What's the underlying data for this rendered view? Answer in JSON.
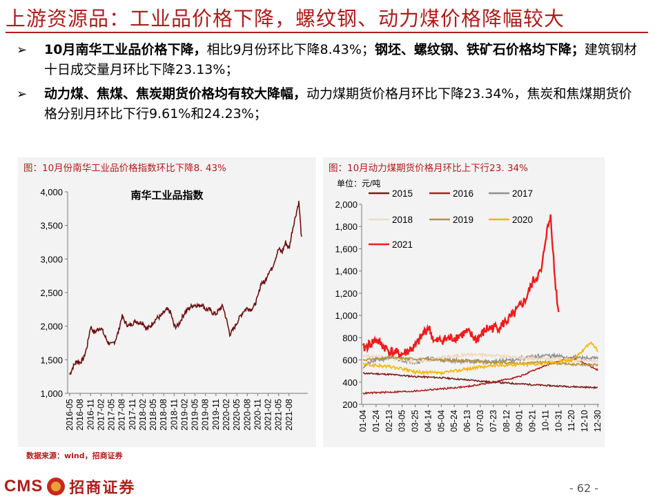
{
  "page": {
    "title": "上游资源品：工业品价格下降，螺纹钢、动力煤价格降幅较大",
    "bullets": [
      {
        "bold": "10月南华工业品价格下降，",
        "text": "相比9月份环比下降8.43%；",
        "bold2": "钢坯、螺纹钢、铁矿石价格均下降；",
        "text2": "建筑钢材十日成交量月环比下降23.13%；"
      },
      {
        "bold": "动力煤、焦煤、焦炭期货价格均有较大降幅，",
        "text": "动力煤期货价格月环比下降23.34%，焦炭和焦煤期货价格分别月环比下行9.61%和24.23%；",
        "bold2": "",
        "text2": ""
      }
    ],
    "source": "数据来源：wind，招商证券",
    "logo_text": "CMS",
    "logo_cn": "招商证券",
    "page_number": "- 62 -",
    "colors": {
      "accent": "#b01c1c",
      "panel_bg": "#f3f3f3"
    }
  },
  "chart_data": [
    {
      "type": "line",
      "caption": "图：10月份南华工业品价格指数环比下降8. 43%",
      "series": [
        {
          "name": "南华工业品指数",
          "color": "#6b0f0f",
          "anchors": [
            [
              "2016-05",
              1280
            ],
            [
              "2016-06",
              1400
            ],
            [
              "2016-07",
              1480
            ],
            [
              "2016-08",
              1460
            ],
            [
              "2016-09",
              1520
            ],
            [
              "2016-10",
              1700
            ],
            [
              "2016-11",
              2000
            ],
            [
              "2016-12",
              1900
            ],
            [
              "2017-01",
              1950
            ],
            [
              "2017-02",
              1980
            ],
            [
              "2017-03",
              1860
            ],
            [
              "2017-04",
              1760
            ],
            [
              "2017-05",
              1720
            ],
            [
              "2017-06",
              1780
            ],
            [
              "2017-07",
              1920
            ],
            [
              "2017-08",
              2150
            ],
            [
              "2017-09",
              2050
            ],
            [
              "2017-10",
              2000
            ],
            [
              "2017-11",
              2040
            ],
            [
              "2017-12",
              2080
            ],
            [
              "2018-01",
              2050
            ],
            [
              "2018-02",
              2060
            ],
            [
              "2018-03",
              1960
            ],
            [
              "2018-04",
              1990
            ],
            [
              "2018-05",
              2060
            ],
            [
              "2018-06",
              2120
            ],
            [
              "2018-07",
              2140
            ],
            [
              "2018-08",
              2200
            ],
            [
              "2018-09",
              2250
            ],
            [
              "2018-10",
              2200
            ],
            [
              "2018-11",
              2000
            ],
            [
              "2018-12",
              2000
            ],
            [
              "2019-01",
              2100
            ],
            [
              "2019-02",
              2200
            ],
            [
              "2019-03",
              2250
            ],
            [
              "2019-04",
              2300
            ],
            [
              "2019-05",
              2320
            ],
            [
              "2019-06",
              2300
            ],
            [
              "2019-07",
              2330
            ],
            [
              "2019-08",
              2250
            ],
            [
              "2019-09",
              2250
            ],
            [
              "2019-10",
              2200
            ],
            [
              "2019-11",
              2180
            ],
            [
              "2019-12",
              2250
            ],
            [
              "2020-01",
              2300
            ],
            [
              "2020-02",
              2100
            ],
            [
              "2020-03",
              1880
            ],
            [
              "2020-04",
              1950
            ],
            [
              "2020-05",
              2050
            ],
            [
              "2020-06",
              2150
            ],
            [
              "2020-07",
              2230
            ],
            [
              "2020-08",
              2270
            ],
            [
              "2020-09",
              2250
            ],
            [
              "2020-10",
              2300
            ],
            [
              "2020-11",
              2430
            ],
            [
              "2020-12",
              2650
            ],
            [
              "2021-01",
              2650
            ],
            [
              "2021-02",
              2800
            ],
            [
              "2021-03",
              2850
            ],
            [
              "2021-04",
              3000
            ],
            [
              "2021-05",
              3150
            ],
            [
              "2021-06",
              3100
            ],
            [
              "2021-07",
              3250
            ],
            [
              "2021-08",
              3150
            ],
            [
              "2021-09",
              3450
            ],
            [
              "2021-10",
              3850
            ],
            [
              "2021-10b",
              3300
            ]
          ]
        }
      ],
      "x_ticks": [
        "2016-05",
        "2016-08",
        "2016-11",
        "2017-02",
        "2017-05",
        "2017-08",
        "2017-11",
        "2018-02",
        "2018-05",
        "2018-08",
        "2018-11",
        "2019-02",
        "2019-05",
        "2019-08",
        "2019-11",
        "2020-02",
        "2020-05",
        "2020-08",
        "2020-11",
        "2021-02",
        "2021-05",
        "2021-08"
      ],
      "y_ticks": [
        "1,000",
        "1,500",
        "2,000",
        "2,500",
        "3,000",
        "3,500",
        "4,000"
      ],
      "ylim": [
        1000,
        4000
      ],
      "legend": "top-center"
    },
    {
      "type": "line",
      "caption": "图：10月动力煤期货价格月环比上下行23. 34%",
      "unit_label": "单位：元/吨",
      "x_ticks": [
        "01-04",
        "01-24",
        "02-13",
        "03-05",
        "03-25",
        "04-14",
        "05-04",
        "05-24",
        "06-13",
        "07-03",
        "07-23",
        "08-12",
        "09-01",
        "09-21",
        "10-11",
        "10-31",
        "11-20",
        "12-10",
        "12-30"
      ],
      "y_ticks": [
        "200",
        "400",
        "600",
        "800",
        "1,000",
        "1,200",
        "1,400",
        "1,600",
        "1,800",
        "2,000"
      ],
      "ylim": [
        200,
        2000
      ],
      "legend": "top-left",
      "series": [
        {
          "name": "2015",
          "color": "#7a1b1b",
          "anchors": [
            [
              0,
              480
            ],
            [
              2,
              470
            ],
            [
              4,
              450
            ],
            [
              6,
              440
            ],
            [
              8,
              420
            ],
            [
              10,
              400
            ],
            [
              12,
              385
            ],
            [
              14,
              370
            ],
            [
              16,
              360
            ],
            [
              18,
              350
            ]
          ]
        },
        {
          "name": "2016",
          "color": "#a82020",
          "anchors": [
            [
              0,
              300
            ],
            [
              2,
              310
            ],
            [
              4,
              320
            ],
            [
              6,
              340
            ],
            [
              8,
              360
            ],
            [
              10,
              400
            ],
            [
              12,
              450
            ],
            [
              14,
              550
            ],
            [
              16,
              620
            ],
            [
              17,
              570
            ],
            [
              18,
              510
            ]
          ]
        },
        {
          "name": "2017",
          "color": "#909090",
          "anchors": [
            [
              0,
              540
            ],
            [
              1,
              600
            ],
            [
              2,
              620
            ],
            [
              4,
              580
            ],
            [
              5,
              610
            ],
            [
              6,
              600
            ],
            [
              8,
              590
            ],
            [
              10,
              580
            ],
            [
              12,
              610
            ],
            [
              14,
              640
            ],
            [
              16,
              620
            ],
            [
              18,
              610
            ]
          ]
        },
        {
          "name": "2018",
          "color": "#f0d8c0",
          "anchors": [
            [
              0,
              640
            ],
            [
              2,
              620
            ],
            [
              4,
              580
            ],
            [
              6,
              620
            ],
            [
              8,
              650
            ],
            [
              10,
              640
            ],
            [
              12,
              620
            ],
            [
              14,
              610
            ],
            [
              16,
              600
            ],
            [
              18,
              590
            ]
          ]
        },
        {
          "name": "2019",
          "color": "#b8923e",
          "anchors": [
            [
              0,
              600
            ],
            [
              2,
              620
            ],
            [
              4,
              610
            ],
            [
              6,
              600
            ],
            [
              8,
              590
            ],
            [
              10,
              580
            ],
            [
              12,
              570
            ],
            [
              14,
              580
            ],
            [
              16,
              560
            ],
            [
              18,
              555
            ]
          ]
        },
        {
          "name": "2020",
          "color": "#f2b600",
          "anchors": [
            [
              0,
              560
            ],
            [
              2,
              540
            ],
            [
              3,
              520
            ],
            [
              4,
              490
            ],
            [
              6,
              480
            ],
            [
              8,
              520
            ],
            [
              10,
              550
            ],
            [
              12,
              560
            ],
            [
              14,
              570
            ],
            [
              16,
              600
            ],
            [
              17,
              700
            ],
            [
              17.5,
              760
            ],
            [
              18,
              680
            ]
          ]
        },
        {
          "name": "2021",
          "color": "#ee1c1c",
          "anchors": [
            [
              0,
              700
            ],
            [
              1,
              780
            ],
            [
              2,
              680
            ],
            [
              3,
              650
            ],
            [
              4,
              720
            ],
            [
              5,
              900
            ],
            [
              5.5,
              760
            ],
            [
              6,
              780
            ],
            [
              7,
              800
            ],
            [
              8,
              850
            ],
            [
              8.7,
              780
            ],
            [
              9.5,
              880
            ],
            [
              10.5,
              900
            ],
            [
              11.5,
              1000
            ],
            [
              12.5,
              1150
            ],
            [
              13,
              1300
            ],
            [
              13.7,
              1400
            ],
            [
              14,
              1700
            ],
            [
              14.4,
              1900
            ],
            [
              14.7,
              1350
            ],
            [
              15,
              1020
            ]
          ]
        }
      ]
    }
  ]
}
